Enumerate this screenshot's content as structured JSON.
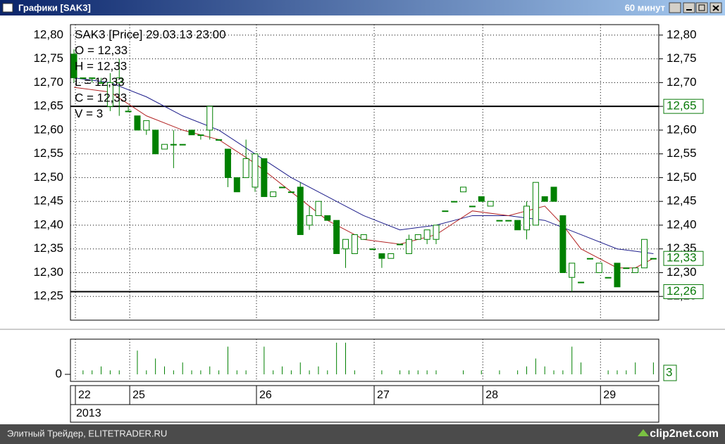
{
  "window": {
    "title": "Графики [SAK3]",
    "timeframe": "60 минут"
  },
  "chart_data": {
    "type": "candlestick",
    "info": [
      "SAK3 [Price] 29.03.13 23:00",
      "O = 12,33",
      "H = 12,33",
      "L = 12,33",
      "C = 12,33",
      "V = 3"
    ],
    "open": [
      12.76,
      12.71,
      12.71,
      12.7,
      12.65,
      12.7,
      12.64,
      12.63,
      12.6,
      12.6,
      12.56,
      12.57,
      12.57,
      12.6,
      12.59,
      12.6,
      12.58,
      12.56,
      12.5,
      12.5,
      12.48,
      12.54,
      12.46,
      12.48,
      12.47,
      12.48,
      12.4,
      12.42,
      12.42,
      12.41,
      12.35,
      12.34,
      12.37,
      12.35,
      12.34,
      12.33,
      12.36,
      12.34,
      12.37,
      12.37,
      12.37,
      12.43,
      12.45,
      12.47,
      12.44,
      12.46,
      12.44,
      12.41,
      12.41,
      12.41,
      12.39,
      12.4,
      12.46,
      12.48,
      12.42,
      12.29,
      12.28,
      12.33,
      12.3,
      12.29,
      12.32,
      12.31,
      12.3,
      12.31,
      12.33
    ],
    "high": [
      12.77,
      12.71,
      12.71,
      12.71,
      12.72,
      12.75,
      12.65,
      12.63,
      12.62,
      12.6,
      12.57,
      12.6,
      12.57,
      12.6,
      12.59,
      12.65,
      12.58,
      12.56,
      12.5,
      12.58,
      12.55,
      12.54,
      12.47,
      12.48,
      12.47,
      12.49,
      12.44,
      12.45,
      12.42,
      12.41,
      12.37,
      12.38,
      12.38,
      12.35,
      12.34,
      12.34,
      12.36,
      12.38,
      12.38,
      12.39,
      12.4,
      12.43,
      12.45,
      12.48,
      12.44,
      12.46,
      12.45,
      12.41,
      12.41,
      12.41,
      12.45,
      12.49,
      12.46,
      12.48,
      12.42,
      12.32,
      12.28,
      12.33,
      12.32,
      12.29,
      12.32,
      12.31,
      12.31,
      12.37,
      12.33
    ],
    "low": [
      12.7,
      12.71,
      12.7,
      12.7,
      12.64,
      12.63,
      12.64,
      12.6,
      12.59,
      12.55,
      12.56,
      12.52,
      12.57,
      12.59,
      12.58,
      12.58,
      12.58,
      12.48,
      12.47,
      12.5,
      12.47,
      12.46,
      12.46,
      12.48,
      12.47,
      12.38,
      12.39,
      12.42,
      12.41,
      12.34,
      12.31,
      12.34,
      12.37,
      12.35,
      12.31,
      12.33,
      12.36,
      12.34,
      12.37,
      12.36,
      12.36,
      12.43,
      12.45,
      12.47,
      12.44,
      12.45,
      12.44,
      12.41,
      12.41,
      12.39,
      12.37,
      12.4,
      12.45,
      12.45,
      12.3,
      12.26,
      12.28,
      12.33,
      12.3,
      12.29,
      12.27,
      12.31,
      12.3,
      12.31,
      12.33
    ],
    "close": [
      12.71,
      12.71,
      12.71,
      12.7,
      12.7,
      12.71,
      12.64,
      12.6,
      12.62,
      12.55,
      12.57,
      12.57,
      12.57,
      12.59,
      12.59,
      12.65,
      12.58,
      12.5,
      12.47,
      12.54,
      12.55,
      12.46,
      12.47,
      12.48,
      12.47,
      12.38,
      12.42,
      12.45,
      12.41,
      12.34,
      12.37,
      12.38,
      12.38,
      12.35,
      12.33,
      12.34,
      12.36,
      12.37,
      12.38,
      12.39,
      12.4,
      12.43,
      12.45,
      12.48,
      12.44,
      12.45,
      12.45,
      12.41,
      12.41,
      12.39,
      12.44,
      12.49,
      12.45,
      12.45,
      12.3,
      12.32,
      12.28,
      12.33,
      12.32,
      12.29,
      12.27,
      12.31,
      12.31,
      12.37,
      12.33
    ],
    "color": "#008000",
    "ylim": [
      12.2,
      12.822
    ],
    "yticks": [
      {
        "value": 12.25,
        "label": "12,25"
      },
      {
        "value": 12.3,
        "label": "12,30"
      },
      {
        "value": 12.35,
        "label": "12,35"
      },
      {
        "value": 12.4,
        "label": "12,40"
      },
      {
        "value": 12.45,
        "label": "12,45"
      },
      {
        "value": 12.5,
        "label": "12,50"
      },
      {
        "value": 12.55,
        "label": "12,55"
      },
      {
        "value": 12.6,
        "label": "12,60"
      },
      {
        "value": 12.65,
        "label": "12,65"
      },
      {
        "value": 12.7,
        "label": "12,70"
      },
      {
        "value": 12.75,
        "label": "12,75"
      },
      {
        "value": 12.8,
        "label": "12,80"
      }
    ],
    "xticks": [
      {
        "value": 0,
        "label": "22"
      },
      {
        "value": 6,
        "label": "25"
      },
      {
        "value": 20,
        "label": "26"
      },
      {
        "value": 33,
        "label": "27"
      },
      {
        "value": 45,
        "label": "28"
      },
      {
        "value": 58,
        "label": "29"
      }
    ],
    "year": "2013",
    "grid": true,
    "levels": [
      {
        "value": 12.65,
        "label": "12,65"
      },
      {
        "value": 12.26,
        "label": "12,26"
      }
    ],
    "last": {
      "value": 12.33,
      "label": "12,33"
    },
    "moving_averages": [
      {
        "color": "#1c1c8a",
        "x": [
          0,
          4,
          8,
          12,
          16,
          20,
          24,
          28,
          32,
          36,
          40,
          44,
          48,
          52,
          56,
          60,
          64
        ],
        "values": [
          12.71,
          12.7,
          12.67,
          12.63,
          12.6,
          12.55,
          12.5,
          12.46,
          12.42,
          12.39,
          12.4,
          12.42,
          12.42,
          12.41,
          12.38,
          12.35,
          12.34
        ]
      },
      {
        "color": "#b22222",
        "x": [
          0,
          4,
          8,
          12,
          16,
          20,
          24,
          28,
          32,
          36,
          40,
          44,
          48,
          52,
          54,
          56,
          58,
          60,
          62,
          64
        ],
        "values": [
          12.69,
          12.68,
          12.63,
          12.6,
          12.58,
          12.53,
          12.47,
          12.41,
          12.37,
          12.36,
          12.38,
          12.43,
          12.42,
          12.44,
          12.4,
          12.35,
          12.33,
          12.31,
          12.31,
          12.33
        ]
      }
    ],
    "volume": {
      "values": [
        0,
        1,
        1,
        2,
        1,
        1,
        0,
        6,
        1,
        4,
        2,
        1,
        3,
        1,
        1,
        2,
        1,
        7,
        1,
        1,
        0,
        7,
        1,
        2,
        1,
        3,
        1,
        2,
        1,
        8,
        8,
        1,
        0,
        0,
        1,
        0,
        1,
        1,
        1,
        1,
        1,
        0,
        0,
        1,
        0,
        1,
        0,
        1,
        0,
        1,
        2,
        4,
        2,
        1,
        1,
        7,
        3,
        0,
        0,
        1,
        1,
        1,
        3,
        0,
        3
      ],
      "ylim": [
        0,
        8
      ],
      "yticks": [
        0
      ]
    }
  },
  "footer": {
    "left": "Элитный Трейдер, ELITETRADER.RU",
    "right": "clip2net.com"
  }
}
